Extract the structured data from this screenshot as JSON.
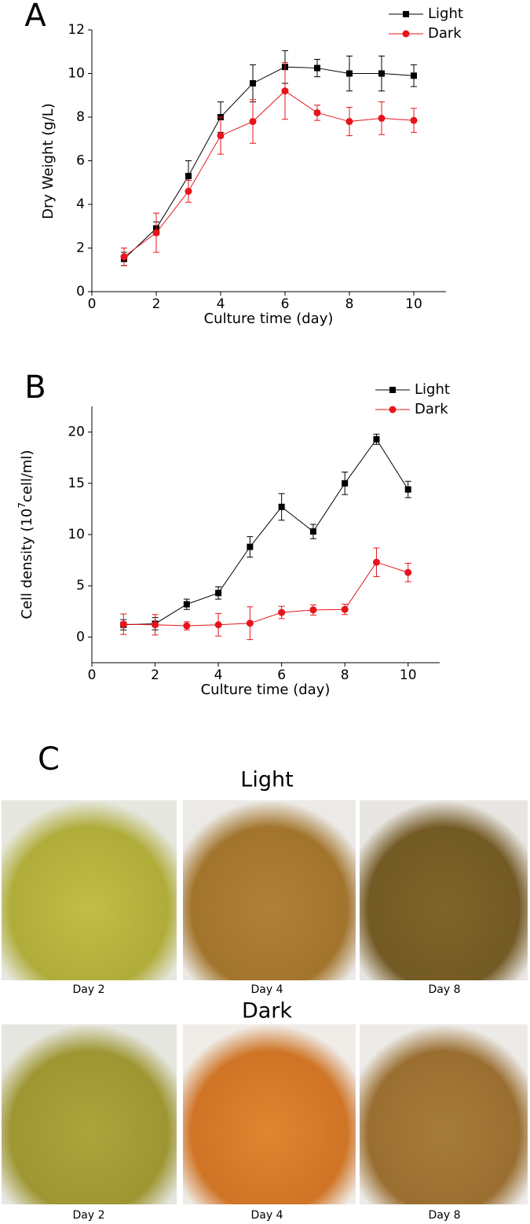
{
  "chart_data": [
    {
      "type": "line",
      "panel_label": "A",
      "xlabel": "Culture time (day)",
      "ylabel": "Dry Weight (g/L)",
      "xlim": [
        0,
        11
      ],
      "xticks": [
        0,
        2,
        4,
        6,
        8,
        10
      ],
      "ylim": [
        0,
        12
      ],
      "yticks": [
        0,
        2,
        4,
        6,
        8,
        10,
        12
      ],
      "x": [
        1,
        2,
        3,
        4,
        5,
        6,
        7,
        8,
        9,
        10
      ],
      "series": [
        {
          "name": "Light",
          "color": "#000000",
          "marker": "square",
          "values": [
            1.5,
            2.9,
            5.3,
            8.0,
            9.55,
            10.3,
            10.25,
            10.0,
            10.0,
            9.9
          ],
          "errors": [
            0.3,
            0.3,
            0.7,
            0.7,
            0.85,
            0.75,
            0.4,
            0.8,
            0.8,
            0.5
          ]
        },
        {
          "name": "Dark",
          "color": "#e8141c",
          "marker": "circle",
          "values": [
            1.6,
            2.7,
            4.6,
            7.15,
            7.8,
            9.2,
            8.2,
            7.8,
            7.95,
            7.85
          ],
          "errors": [
            0.4,
            0.9,
            0.5,
            0.85,
            1.0,
            1.3,
            0.35,
            0.65,
            0.75,
            0.55
          ]
        }
      ]
    },
    {
      "type": "line",
      "panel_label": "B",
      "xlabel": "Culture time (day)",
      "ylabel": [
        "Cell density (10",
        "7",
        "cell/ml)"
      ],
      "xlim": [
        0,
        11
      ],
      "xticks": [
        0,
        2,
        4,
        6,
        8,
        10
      ],
      "ylim": [
        -2.5,
        22.5
      ],
      "yticks": [
        0,
        5,
        10,
        15,
        20
      ],
      "x": [
        1,
        2,
        3,
        4,
        5,
        6,
        7,
        8,
        9,
        10
      ],
      "series": [
        {
          "name": "Light",
          "color": "#000000",
          "marker": "square",
          "values": [
            1.2,
            1.3,
            3.2,
            4.3,
            8.8,
            12.7,
            10.3,
            15.0,
            19.3,
            14.4
          ],
          "errors": [
            0.5,
            0.6,
            0.5,
            0.6,
            1.0,
            1.3,
            0.7,
            1.1,
            0.5,
            0.8
          ]
        },
        {
          "name": "Dark",
          "color": "#e8141c",
          "marker": "circle",
          "values": [
            1.25,
            1.2,
            1.1,
            1.2,
            1.35,
            2.4,
            2.65,
            2.7,
            7.3,
            6.3
          ],
          "errors": [
            1.0,
            1.0,
            0.4,
            1.1,
            1.6,
            0.6,
            0.5,
            0.5,
            1.4,
            0.9
          ]
        }
      ]
    }
  ],
  "panel_c": {
    "label": "C",
    "rows": [
      {
        "title": "Light",
        "captions": [
          "Day 2",
          "Day 4",
          "Day 8"
        ]
      },
      {
        "title": "Dark",
        "captions": [
          "Day 2",
          "Day 4",
          "Day 8"
        ]
      }
    ]
  }
}
